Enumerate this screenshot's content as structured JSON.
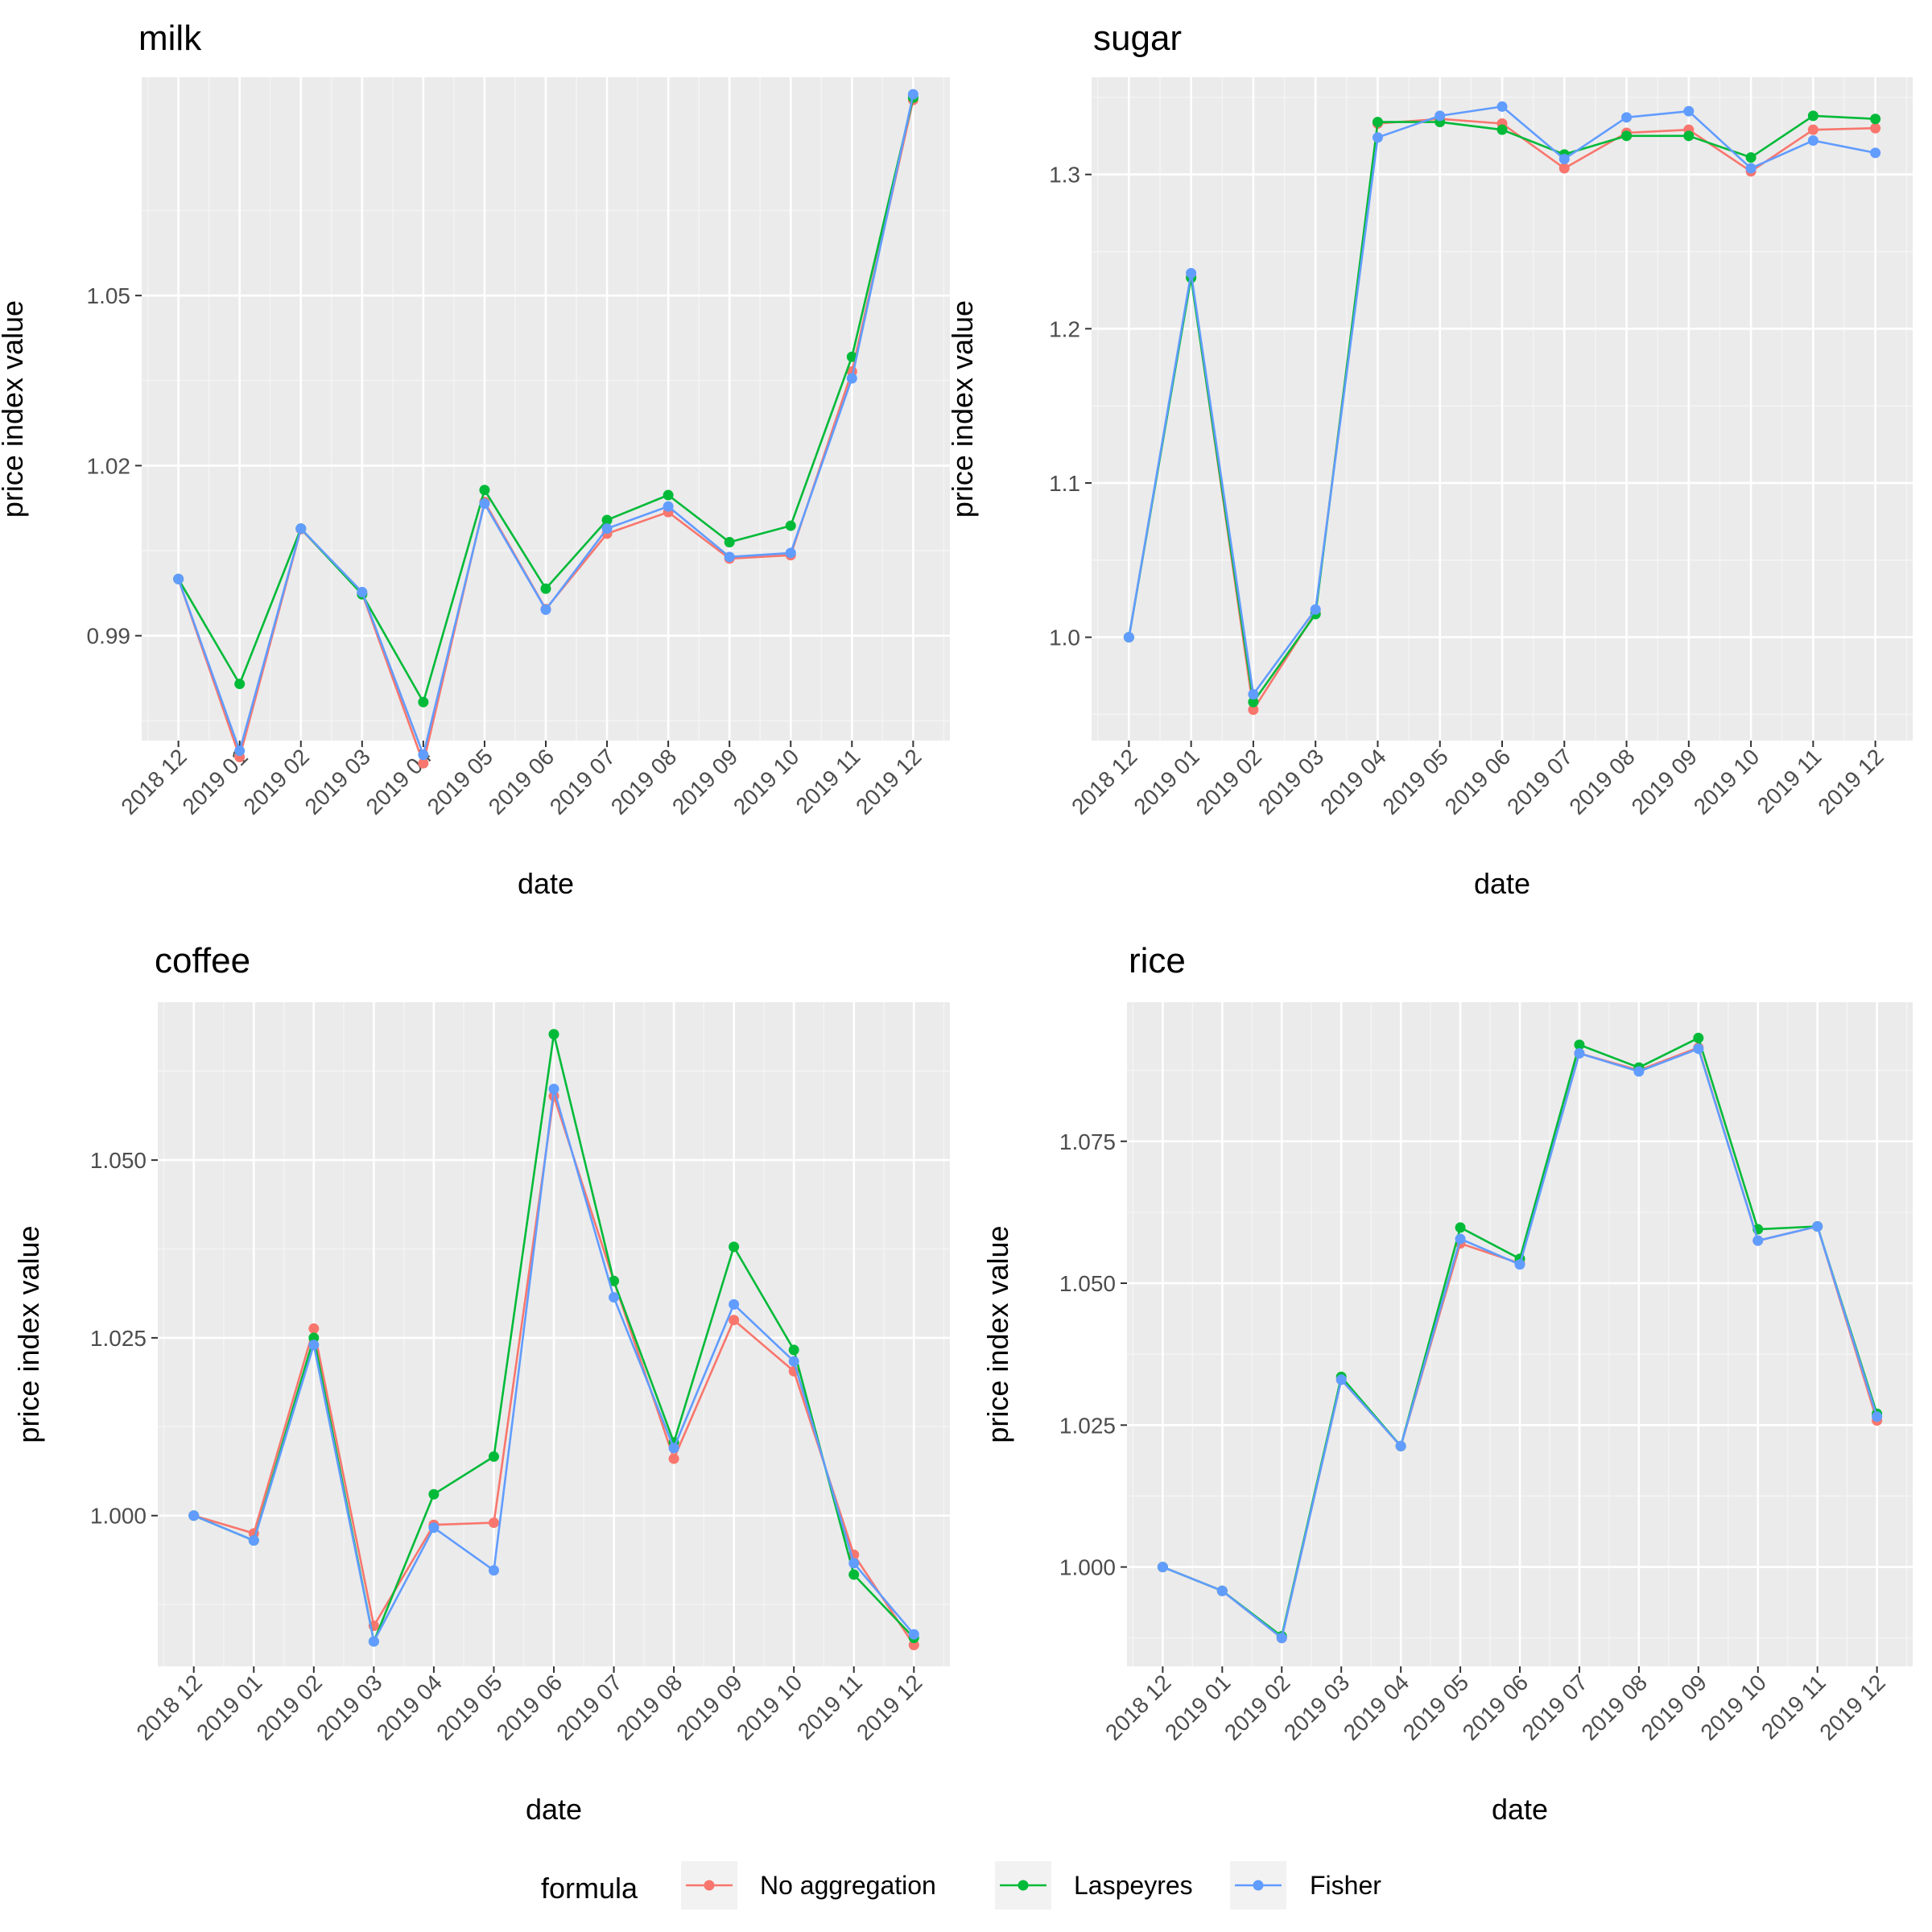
{
  "colors": {
    "panel_background": "#EBEBEB",
    "grid_major": "#FFFFFF",
    "grid_minor": "#F5F5F5",
    "tick_text": "#4D4D4D",
    "text": "#000000",
    "No aggregation": "#F8766D",
    "Laspeyres": "#00BA38",
    "Fisher": "#619CFF"
  },
  "legend": {
    "title": "formula",
    "position": "bottom",
    "items": [
      "No aggregation",
      "Laspeyres",
      "Fisher"
    ]
  },
  "chart_data": [
    {
      "type": "line",
      "title": "milk",
      "xlabel": "date",
      "ylabel": "price index value",
      "x": [
        "2018 12",
        "2019 01",
        "2019 02",
        "2019 03",
        "2019 04",
        "2019 05",
        "2019 06",
        "2019 07",
        "2019 08",
        "2019 09",
        "2019 10",
        "2019 11",
        "2019 12"
      ],
      "yticks": [
        0.99,
        1.02,
        1.05
      ],
      "yticklabels": [
        "0.99",
        "1.02",
        "1.05"
      ],
      "ylim": [
        0.9715,
        1.0885
      ],
      "grid": true,
      "series": [
        {
          "name": "No aggregation",
          "values": [
            1.0,
            0.9686,
            1.0088,
            0.9975,
            0.9675,
            1.0136,
            0.9947,
            1.008,
            1.0118,
            1.0036,
            1.0042,
            1.0366,
            1.0845
          ]
        },
        {
          "name": "Laspeyres",
          "values": [
            1.0,
            0.9815,
            1.0089,
            0.9973,
            0.9783,
            1.0157,
            0.9983,
            1.0104,
            1.0148,
            1.0065,
            1.0094,
            1.0392,
            1.0849
          ]
        },
        {
          "name": "Fisher",
          "values": [
            1.0,
            0.9697,
            1.0089,
            0.9977,
            0.969,
            1.0133,
            0.9946,
            1.0089,
            1.0128,
            1.0039,
            1.0046,
            1.0354,
            1.0855
          ]
        }
      ]
    },
    {
      "type": "line",
      "title": "sugar",
      "xlabel": "date",
      "ylabel": "price index value",
      "x": [
        "2018 12",
        "2019 01",
        "2019 02",
        "2019 03",
        "2019 04",
        "2019 05",
        "2019 06",
        "2019 07",
        "2019 08",
        "2019 09",
        "2019 10",
        "2019 11",
        "2019 12"
      ],
      "yticks": [
        1.0,
        1.1,
        1.2,
        1.3
      ],
      "yticklabels": [
        "1.0",
        "1.1",
        "1.2",
        "1.3"
      ],
      "ylim": [
        0.933,
        1.363
      ],
      "grid": true,
      "series": [
        {
          "name": "No aggregation",
          "values": [
            1.0,
            1.234,
            0.953,
            1.016,
            1.333,
            1.336,
            1.333,
            1.304,
            1.327,
            1.329,
            1.302,
            1.329,
            1.33
          ]
        },
        {
          "name": "Laspeyres",
          "values": [
            1.0,
            1.233,
            0.958,
            1.015,
            1.334,
            1.334,
            1.329,
            1.313,
            1.325,
            1.325,
            1.311,
            1.338,
            1.336
          ]
        },
        {
          "name": "Fisher",
          "values": [
            1.0,
            1.236,
            0.963,
            1.018,
            1.324,
            1.338,
            1.344,
            1.31,
            1.337,
            1.341,
            1.304,
            1.322,
            1.314
          ]
        }
      ]
    },
    {
      "type": "line",
      "title": "coffee",
      "xlabel": "date",
      "ylabel": "price index value",
      "x": [
        "2018 12",
        "2019 01",
        "2019 02",
        "2019 03",
        "2019 04",
        "2019 05",
        "2019 06",
        "2019 07",
        "2019 08",
        "2019 09",
        "2019 10",
        "2019 11",
        "2019 12"
      ],
      "yticks": [
        1.0,
        1.025,
        1.05
      ],
      "yticklabels": [
        "1.000",
        "1.025",
        "1.050"
      ],
      "ylim": [
        0.9788,
        1.0722
      ],
      "grid": true,
      "series": [
        {
          "name": "No aggregation",
          "values": [
            1.0,
            0.9975,
            1.0263,
            0.9845,
            0.9987,
            0.999,
            1.059,
            1.033,
            1.008,
            1.0275,
            1.0203,
            0.9945,
            0.9818
          ]
        },
        {
          "name": "Laspeyres",
          "values": [
            1.0,
            0.9965,
            1.025,
            0.9823,
            1.003,
            1.0083,
            1.0677,
            1.033,
            1.0103,
            1.0378,
            1.0233,
            0.9917,
            0.9828
          ]
        },
        {
          "name": "Fisher",
          "values": [
            1.0,
            0.9965,
            1.024,
            0.9823,
            0.9983,
            0.9923,
            1.06,
            1.0307,
            1.0095,
            1.0297,
            1.0217,
            0.9933,
            0.9833
          ]
        }
      ]
    },
    {
      "type": "line",
      "title": "rice",
      "xlabel": "date",
      "ylabel": "price index value",
      "x": [
        "2018 12",
        "2019 01",
        "2019 02",
        "2019 03",
        "2019 04",
        "2019 05",
        "2019 06",
        "2019 07",
        "2019 08",
        "2019 09",
        "2019 10",
        "2019 11",
        "2019 12"
      ],
      "yticks": [
        1.0,
        1.025,
        1.05,
        1.075
      ],
      "yticklabels": [
        "1.000",
        "1.025",
        "1.050",
        "1.075"
      ],
      "ylim": [
        0.9825,
        1.0995
      ],
      "grid": true,
      "series": [
        {
          "name": "No aggregation",
          "values": [
            1.0,
            0.9958,
            0.9875,
            1.033,
            1.0213,
            1.057,
            1.0535,
            1.0905,
            1.0875,
            1.0915,
            1.0575,
            1.06,
            1.0258
          ]
        },
        {
          "name": "Laspeyres",
          "values": [
            1.0,
            0.9958,
            0.9878,
            1.0335,
            1.0213,
            1.0598,
            1.0543,
            1.092,
            1.088,
            1.0932,
            1.0595,
            1.06,
            1.027
          ]
        },
        {
          "name": "Fisher",
          "values": [
            1.0,
            0.9958,
            0.9875,
            1.033,
            1.0213,
            1.0578,
            1.0533,
            1.0905,
            1.0873,
            1.0913,
            1.0575,
            1.06,
            1.0265
          ]
        }
      ]
    }
  ]
}
